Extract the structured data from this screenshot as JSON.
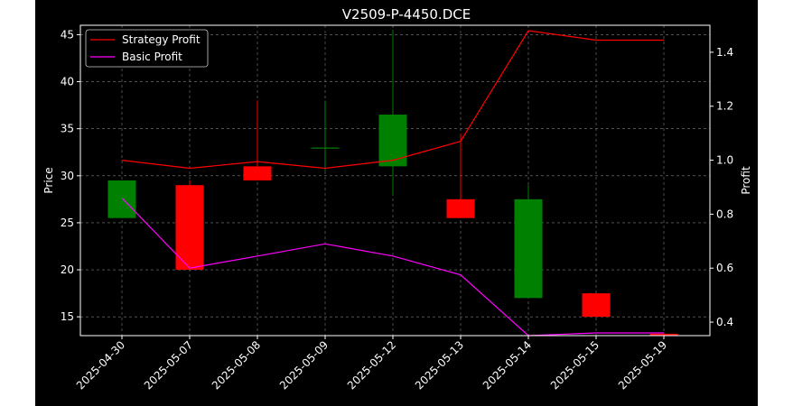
{
  "chart_data": {
    "type": "candlestick",
    "title": "V2509-P-4450.DCE",
    "xlabel": "",
    "ylabel": "Price",
    "y2label": "Profit",
    "ylim": [
      13.0,
      46.0
    ],
    "y2lim": [
      0.35,
      1.5
    ],
    "yticks": [
      15,
      20,
      25,
      30,
      35,
      40,
      45
    ],
    "y2ticks": [
      0.4,
      0.6,
      0.8,
      1.0,
      1.2,
      1.4
    ],
    "grid": true,
    "legend_position": "top-left",
    "categories": [
      "2025-04-30",
      "2025-05-07",
      "2025-05-08",
      "2025-05-09",
      "2025-05-12",
      "2025-05-13",
      "2025-05-14",
      "2025-05-15",
      "2025-05-19"
    ],
    "candles": [
      {
        "date": "2025-04-30",
        "open": 25.5,
        "close": 29.5,
        "high": 29.5,
        "low": 25.5
      },
      {
        "date": "2025-05-07",
        "open": 29.0,
        "close": 20.0,
        "high": 29.5,
        "low": 20.0
      },
      {
        "date": "2025-05-08",
        "open": 31.0,
        "close": 29.5,
        "high": 38.0,
        "low": 29.5
      },
      {
        "date": "2025-05-09",
        "open": 33.0,
        "close": 33.0,
        "high": 38.0,
        "low": 30.5
      },
      {
        "date": "2025-05-12",
        "open": 31.0,
        "close": 36.5,
        "high": 45.5,
        "low": 28.0
      },
      {
        "date": "2025-05-13",
        "open": 27.5,
        "close": 25.5,
        "high": 34.5,
        "low": 25.5
      },
      {
        "date": "2025-05-14",
        "open": 17.0,
        "close": 27.5,
        "high": 29.0,
        "low": 17.0
      },
      {
        "date": "2025-05-15",
        "open": 17.5,
        "close": 15.0,
        "high": 17.5,
        "low": 15.0
      },
      {
        "date": "2025-05-19",
        "open": 13.2,
        "close": 13.0,
        "high": 13.2,
        "low": 13.0
      }
    ],
    "series": [
      {
        "name": "Strategy Profit",
        "color": "#ff0000",
        "values": [
          1.0,
          0.97,
          0.995,
          0.97,
          1.0,
          1.07,
          1.48,
          1.445,
          1.445
        ]
      },
      {
        "name": "Basic Profit",
        "color": "#ff00ff",
        "values": [
          0.86,
          0.6,
          0.645,
          0.69,
          0.645,
          0.575,
          0.35,
          0.36,
          0.36
        ]
      }
    ],
    "colors": {
      "up": "#008000",
      "down": "#ff0000"
    }
  }
}
